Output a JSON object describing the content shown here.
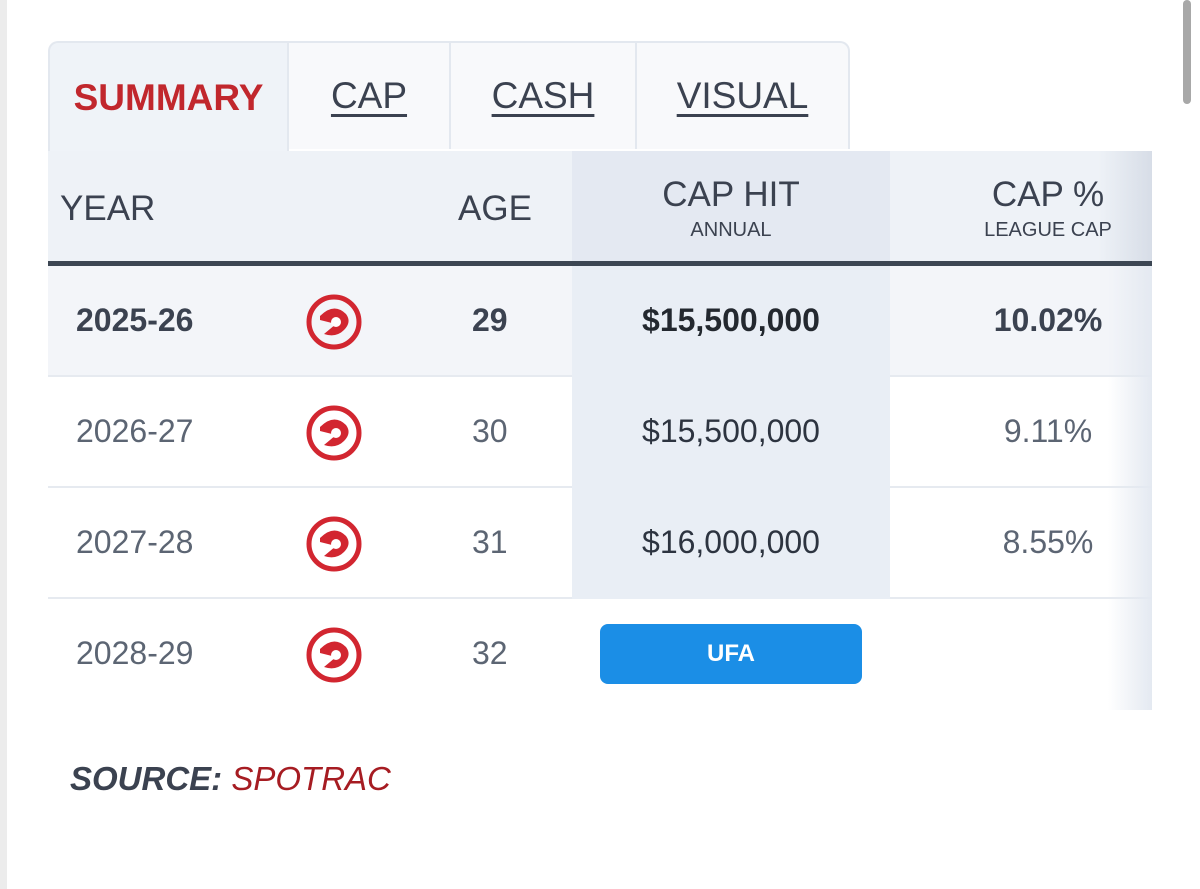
{
  "tabs": [
    {
      "label": "SUMMARY",
      "active": true
    },
    {
      "label": "CAP",
      "active": false
    },
    {
      "label": "CASH",
      "active": false
    },
    {
      "label": "VISUAL",
      "active": false
    }
  ],
  "table": {
    "headers": {
      "year": "YEAR",
      "age": "AGE",
      "cap_hit": "CAP HIT",
      "cap_hit_sub": "ANNUAL",
      "cap_pct": "CAP %",
      "cap_pct_sub": "LEAGUE CAP"
    },
    "rows": [
      {
        "year": "2025-26",
        "team_icon": "hawks-logo-icon",
        "age": "29",
        "cap_hit": "$15,500,000",
        "cap_pct": "10.02%"
      },
      {
        "year": "2026-27",
        "team_icon": "hawks-logo-icon",
        "age": "30",
        "cap_hit": "$15,500,000",
        "cap_pct": "9.11%"
      },
      {
        "year": "2027-28",
        "team_icon": "hawks-logo-icon",
        "age": "31",
        "cap_hit": "$16,000,000",
        "cap_pct": "8.55%"
      },
      {
        "year": "2028-29",
        "team_icon": "hawks-logo-icon",
        "age": "32",
        "status": "UFA"
      }
    ]
  },
  "source": {
    "label": "SOURCE:",
    "value": "SPOTRAC"
  },
  "colors": {
    "accent": "#c1272d",
    "ufa": "#1b8ee6",
    "header_rule": "#3c4653"
  }
}
